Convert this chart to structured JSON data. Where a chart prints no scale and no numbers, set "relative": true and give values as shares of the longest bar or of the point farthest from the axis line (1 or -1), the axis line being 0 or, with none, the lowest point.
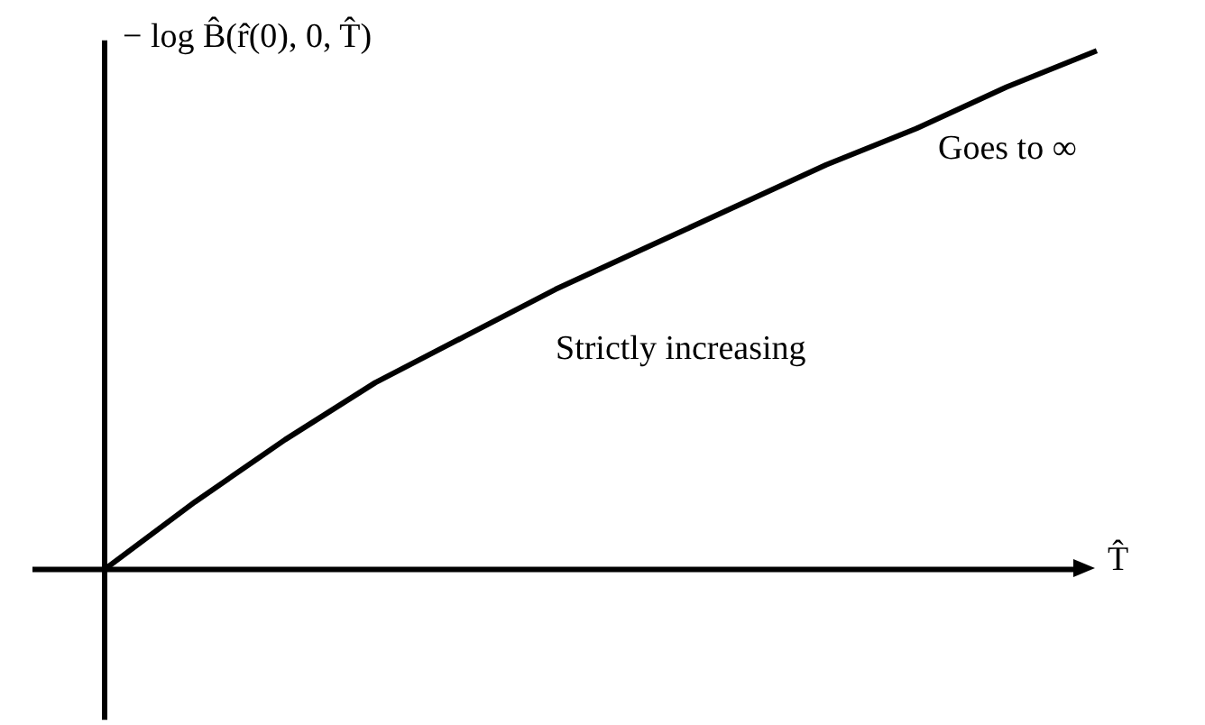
{
  "chart_data": {
    "type": "line",
    "relative": true,
    "ylabel": "− log B̂(r̂(0), 0, T̂)",
    "xlabel": "T̂",
    "annotations": [
      "Goes to ∞",
      "Strictly increasing"
    ],
    "categories": [
      null,
      null,
      null,
      null,
      null,
      null,
      null,
      null,
      null,
      null,
      null,
      null
    ],
    "values": [
      0,
      0.13,
      0.25,
      0.36,
      0.45,
      0.54,
      0.62,
      0.7,
      0.78,
      0.85,
      0.93,
      1
    ],
    "color": "#000000"
  }
}
